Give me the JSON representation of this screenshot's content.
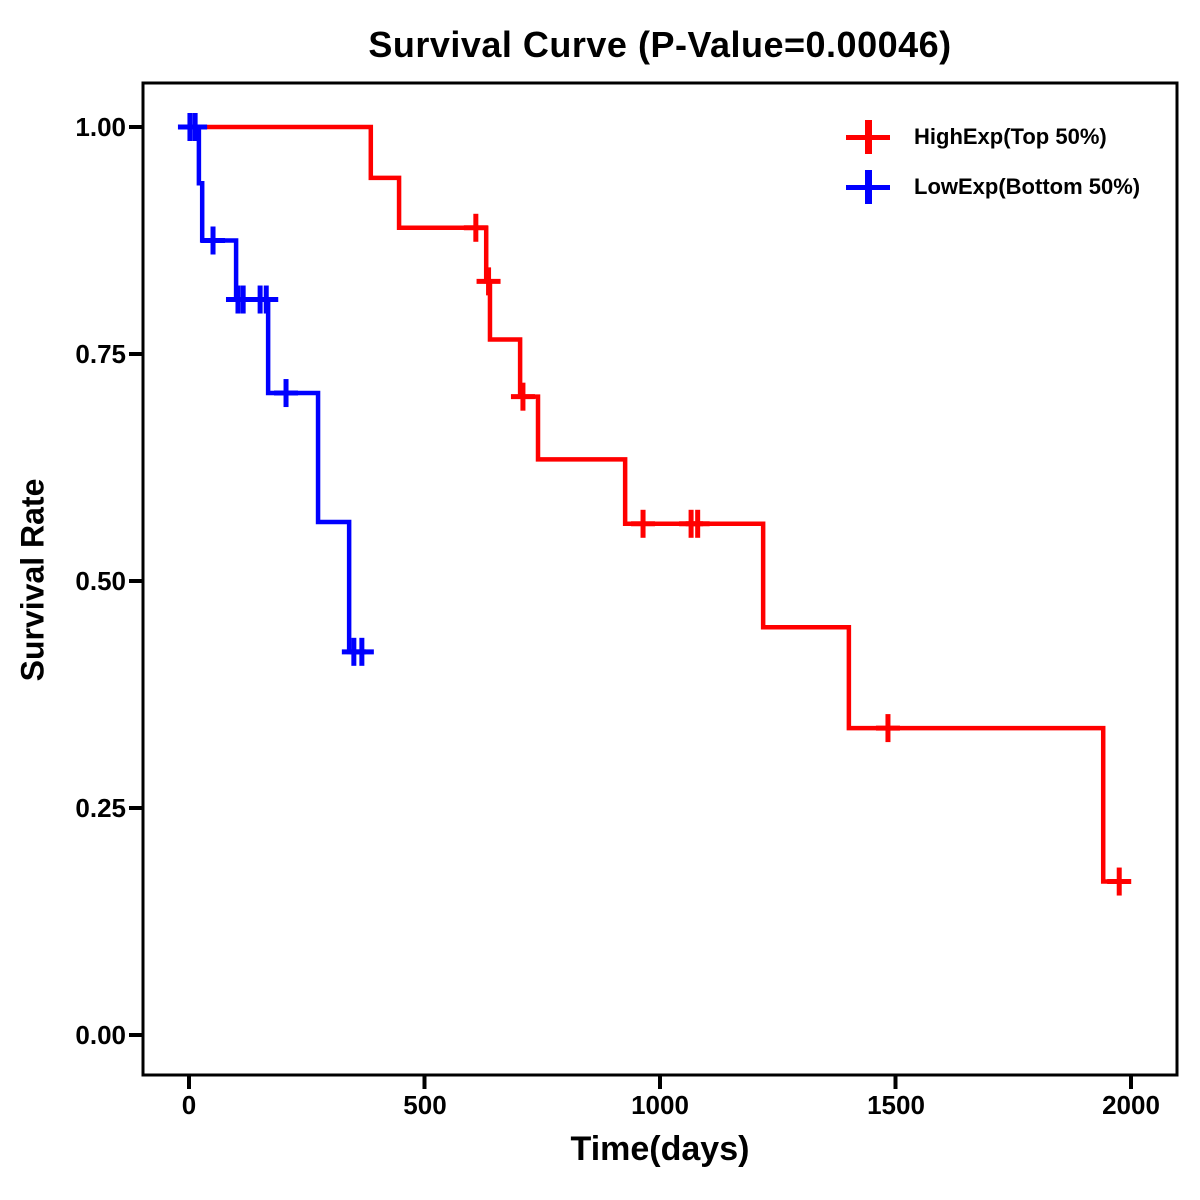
{
  "title": "Survival Curve (P-Value=0.00046)",
  "p_value": "0.00046",
  "chart_data": {
    "type": "line",
    "subtype": "kaplan-meier-step-survival",
    "title": "Survival Curve (P-Value=0.00046)",
    "xlabel": "Time(days)",
    "ylabel": "Survival Rate",
    "xlim": [
      -97,
      2098
    ],
    "ylim": [
      -0.044,
      1.048
    ],
    "grid": false,
    "legend_position": "top-right-inside",
    "x_ticks": [
      0,
      500,
      1000,
      1500,
      2000
    ],
    "x_tick_labels": [
      "0",
      "500",
      "1000",
      "1500",
      "2000"
    ],
    "y_ticks": [
      1.0,
      0.75,
      0.5,
      0.25,
      0.0
    ],
    "y_tick_labels": [
      "1.00",
      "0.75",
      "0.50",
      "0.25",
      "0.00"
    ],
    "series": [
      {
        "name": "HighExp(Top 50%)",
        "color": "#ff0000",
        "steps": [
          [
            0,
            1.0
          ],
          [
            386,
            0.944
          ],
          [
            446,
            0.889
          ],
          [
            631,
            0.83
          ],
          [
            639,
            0.766
          ],
          [
            703,
            0.703
          ],
          [
            741,
            0.634
          ],
          [
            926,
            0.563
          ],
          [
            1219,
            0.449
          ],
          [
            1401,
            0.338
          ],
          [
            1941,
            0.169
          ]
        ],
        "end_time": 1990,
        "censor_points": [
          [
            609,
            0.889
          ],
          [
            636,
            0.83
          ],
          [
            709,
            0.703
          ],
          [
            964,
            0.563
          ],
          [
            1066,
            0.563
          ],
          [
            1080,
            0.563
          ],
          [
            1484,
            0.338
          ],
          [
            1975,
            0.169
          ]
        ]
      },
      {
        "name": "LowExp(Bottom 50%)",
        "color": "#0000ff",
        "steps": [
          [
            0,
            1.0
          ],
          [
            21,
            0.938
          ],
          [
            28,
            0.875
          ],
          [
            100,
            0.81
          ],
          [
            168,
            0.707
          ],
          [
            274,
            0.565
          ],
          [
            340,
            0.422
          ]
        ],
        "end_time": 390,
        "censor_points": [
          [
            2,
            1.0
          ],
          [
            13,
            1.0
          ],
          [
            51,
            0.875
          ],
          [
            104,
            0.81
          ],
          [
            115,
            0.81
          ],
          [
            151,
            0.81
          ],
          [
            164,
            0.81
          ],
          [
            206,
            0.707
          ],
          [
            350,
            0.422
          ],
          [
            367,
            0.422
          ]
        ]
      }
    ]
  },
  "legend": {
    "items": [
      {
        "label": "HighExp(Top 50%)",
        "color": "#ff0000"
      },
      {
        "label": "LowExp(Bottom 50%)",
        "color": "#0000ff"
      }
    ]
  }
}
